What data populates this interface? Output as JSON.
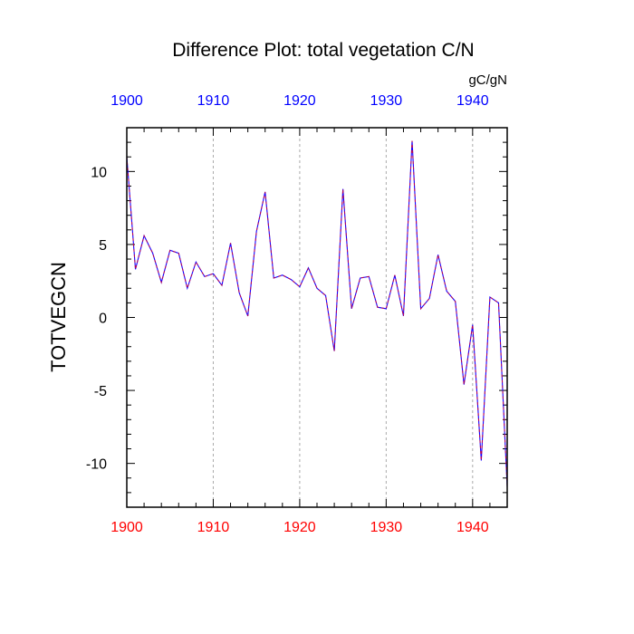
{
  "chart_data": {
    "type": "line",
    "title": "Difference Plot: total vegetation C/N",
    "units": "gC/gN",
    "ylabel": "TOTVEGCN",
    "xlabel": "",
    "xlim": [
      1900,
      1944
    ],
    "ylim": [
      -13,
      13
    ],
    "x_ticks": [
      1900,
      1910,
      1920,
      1930,
      1940
    ],
    "x_tick_labels": [
      "1900",
      "1910",
      "1920",
      "1930",
      "1940"
    ],
    "y_ticks": [
      10,
      5,
      0,
      -5,
      -10
    ],
    "y_tick_labels": [
      "10",
      "5",
      "0",
      "-5",
      "-10"
    ],
    "grid": "vertical dashed at major x ticks",
    "colors": {
      "line_outer": "#1500ff",
      "line_dash": "#ff0000",
      "top_tick_labels": "#0000ff",
      "bottom_tick_labels": "#ff0000",
      "grid": "#aaaaaa"
    },
    "x": [
      1900,
      1901,
      1902,
      1903,
      1904,
      1905,
      1906,
      1907,
      1908,
      1909,
      1910,
      1911,
      1912,
      1913,
      1914,
      1915,
      1916,
      1917,
      1918,
      1919,
      1920,
      1921,
      1922,
      1923,
      1924,
      1925,
      1926,
      1927,
      1928,
      1929,
      1930,
      1931,
      1932,
      1933,
      1934,
      1935,
      1936,
      1937,
      1938,
      1939,
      1940,
      1941,
      1942,
      1943,
      1944
    ],
    "series": [
      {
        "values": [
          11.0,
          3.3,
          5.6,
          4.4,
          2.4,
          4.6,
          4.4,
          2.0,
          3.8,
          2.8,
          3.0,
          2.2,
          5.1,
          1.7,
          0.1,
          5.9,
          8.6,
          2.7,
          2.9,
          2.6,
          2.1,
          3.4,
          2.0,
          1.5,
          -2.3,
          8.8,
          0.6,
          2.7,
          2.8,
          0.7,
          0.6,
          2.9,
          0.1,
          12.1,
          0.6,
          1.3,
          4.3,
          1.8,
          1.1,
          -4.6,
          -0.5,
          -9.8,
          1.4,
          1.0,
          -11.6
        ]
      }
    ]
  }
}
